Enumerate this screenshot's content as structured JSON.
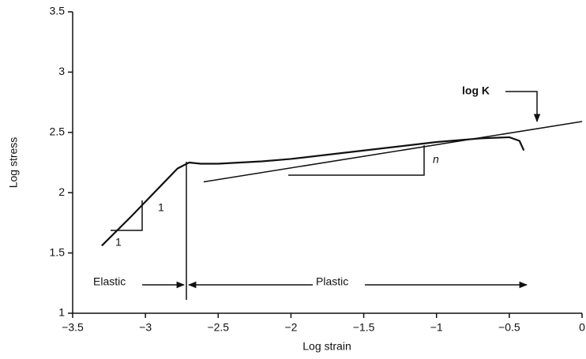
{
  "chart_data": {
    "type": "line",
    "x_label": "Log strain",
    "y_label": "Log stress",
    "x": [
      -3.3,
      -3.1,
      -2.9,
      -2.78,
      -2.7,
      -2.62,
      -2.5,
      -2.2,
      -2.0,
      -1.5,
      -1.0,
      -0.7,
      -0.5,
      -0.43,
      -0.4
    ],
    "values": [
      1.56,
      1.8,
      2.05,
      2.2,
      2.25,
      2.24,
      2.24,
      2.26,
      2.28,
      2.35,
      2.42,
      2.45,
      2.46,
      2.43,
      2.35
    ],
    "color": "#111111",
    "fit_line": {
      "x": [
        -2.6,
        0
      ],
      "values": [
        2.09,
        2.59
      ]
    },
    "xlim": [
      -3.5,
      0
    ],
    "xticks": [
      {
        "value": -3.5,
        "label": "−3.5"
      },
      {
        "value": -3,
        "label": "−3"
      },
      {
        "value": -2.5,
        "label": "−2.5"
      },
      {
        "value": -2,
        "label": "−2"
      },
      {
        "value": -1.5,
        "label": "−1.5"
      },
      {
        "value": -1,
        "label": "−1"
      },
      {
        "value": -0.5,
        "label": "−0.5"
      },
      0
    ],
    "ylim": [
      1,
      3.5
    ],
    "yticks": [
      1,
      1.5,
      2,
      2.5,
      3,
      3.5
    ],
    "annotations": {
      "rise": "1",
      "run": "1",
      "slope": "n",
      "elastic": "Elastic",
      "plastic": "Plastic",
      "log_k": "log K"
    }
  }
}
